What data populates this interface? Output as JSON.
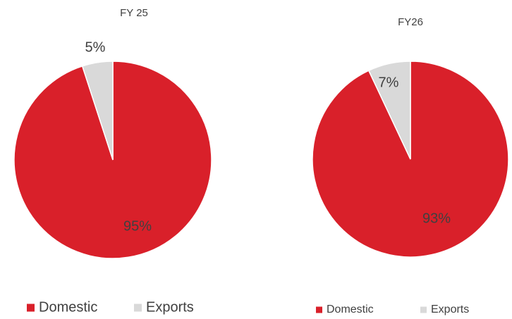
{
  "chart_data": [
    {
      "type": "pie",
      "title": "FY 25",
      "categories": [
        "Domestic",
        "Exports"
      ],
      "values": [
        95,
        5
      ],
      "value_labels": [
        "95%",
        "5%"
      ],
      "colors": [
        "#d9202a",
        "#d9d9d9"
      ],
      "legend": "bottom"
    },
    {
      "type": "pie",
      "title": "FY26",
      "categories": [
        "Domestic",
        "Exports"
      ],
      "values": [
        93,
        7
      ],
      "value_labels": [
        "93%",
        "7%"
      ],
      "colors": [
        "#d9202a",
        "#d9d9d9"
      ],
      "legend": "bottom"
    }
  ]
}
